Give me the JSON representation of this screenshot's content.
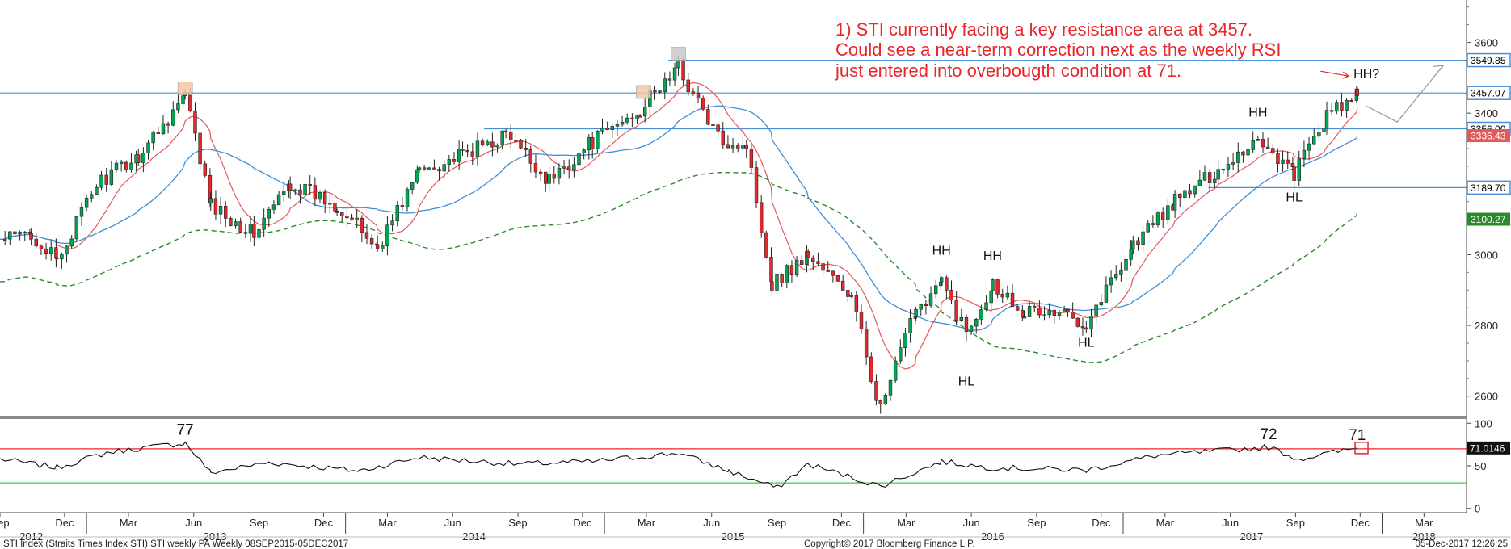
{
  "chart_data": {
    "type": "candlestick",
    "footer_left": "STI Index (Straits Times Index STI) STI weekly PA  Weekly 08SEP2015-05DEC2017",
    "footer_center": "Copyright© 2017 Bloomberg Finance L.P.",
    "footer_right": "05-Dec-2017 12:26:25",
    "annotation_lines": [
      "1) STI currently facing a key resistance area at 3457.",
      "Could see a near-term correction next as the weekly RSI",
      "just entered into overbougth condition at 71."
    ],
    "colors": {
      "up": "#00a651",
      "down": "#e8262b",
      "ma_short": "#e05a5a",
      "ma_mid": "#3f8fd8",
      "ma_long": "#2b8a2b",
      "hline": "#4a90d9",
      "annotation": "#e8262b",
      "rsi_upper": "#e8262b",
      "rsi_lower": "#3ecf3e"
    },
    "price_axis": {
      "ylim": [
        2540,
        3720
      ],
      "ticks": [
        "2600",
        "2800",
        "3000",
        "3200",
        "3400",
        "3600"
      ]
    },
    "rsi_axis": {
      "ylim": [
        -5,
        105
      ],
      "ticks": [
        "0",
        "50",
        "100"
      ],
      "upper_level": 70,
      "lower_level": 30
    },
    "x_range": [
      "2012-09-01",
      "2018-04-30"
    ],
    "x_months": [
      {
        "label": "Sep",
        "date": "2012-09-01"
      },
      {
        "label": "Dec",
        "date": "2012-12-01"
      },
      {
        "label": "Mar",
        "date": "2013-03-01"
      },
      {
        "label": "Jun",
        "date": "2013-06-01"
      },
      {
        "label": "Sep",
        "date": "2013-09-01"
      },
      {
        "label": "Dec",
        "date": "2013-12-01"
      },
      {
        "label": "Mar",
        "date": "2014-03-01"
      },
      {
        "label": "Jun",
        "date": "2014-06-01"
      },
      {
        "label": "Sep",
        "date": "2014-09-01"
      },
      {
        "label": "Dec",
        "date": "2014-12-01"
      },
      {
        "label": "Mar",
        "date": "2015-03-01"
      },
      {
        "label": "Jun",
        "date": "2015-06-01"
      },
      {
        "label": "Sep",
        "date": "2015-09-01"
      },
      {
        "label": "Dec",
        "date": "2015-12-01"
      },
      {
        "label": "Mar",
        "date": "2016-03-01"
      },
      {
        "label": "Jun",
        "date": "2016-06-01"
      },
      {
        "label": "Sep",
        "date": "2016-09-01"
      },
      {
        "label": "Dec",
        "date": "2016-12-01"
      },
      {
        "label": "Mar",
        "date": "2017-03-01"
      },
      {
        "label": "Jun",
        "date": "2017-06-01"
      },
      {
        "label": "Sep",
        "date": "2017-09-01"
      },
      {
        "label": "Dec",
        "date": "2017-12-01"
      },
      {
        "label": "Mar",
        "date": "2018-03-01"
      }
    ],
    "x_years": [
      {
        "label": "2012",
        "date": "2012-10-15"
      },
      {
        "label": "2013",
        "date": "2013-07-01"
      },
      {
        "label": "2014",
        "date": "2014-07-01"
      },
      {
        "label": "2015",
        "date": "2015-07-01"
      },
      {
        "label": "2016",
        "date": "2016-07-01"
      },
      {
        "label": "2017",
        "date": "2017-07-01"
      },
      {
        "label": "2018",
        "date": "2018-03-01"
      }
    ],
    "horizontal_levels": [
      {
        "value": 3549.85,
        "label": "3549.85",
        "start": "2015-04-01"
      },
      {
        "value": 3457.07,
        "label": "3457.07",
        "start": "2012-09-01"
      },
      {
        "value": 3356.0,
        "label": "3356.00",
        "start": "2014-07-15"
      },
      {
        "value": 3189.7,
        "label": "3189.70",
        "start": "2017-05-01"
      }
    ],
    "ma_tags": [
      {
        "value": 3336.43,
        "label": "3336.43",
        "series": "ma_short"
      },
      {
        "value": 3100.27,
        "label": "3100.27",
        "series": "ma_long"
      }
    ],
    "rsi_tag": {
      "value": 71.0146,
      "label": "71.0146"
    },
    "rsi_labels": [
      {
        "text": "77",
        "date": "2013-05-20",
        "value": 77
      },
      {
        "text": "72",
        "date": "2017-07-25",
        "value": 72
      },
      {
        "text": "71",
        "date": "2017-11-27",
        "value": 71
      }
    ],
    "swing_labels": [
      {
        "text": "HH",
        "date": "2016-04-20",
        "value": 3000
      },
      {
        "text": "HL",
        "date": "2016-05-25",
        "value": 2630
      },
      {
        "text": "HH",
        "date": "2016-07-01",
        "value": 2985
      },
      {
        "text": "HL",
        "date": "2016-11-10",
        "value": 2740
      },
      {
        "text": "HH",
        "date": "2017-07-10",
        "value": 3390
      },
      {
        "text": "HL",
        "date": "2017-08-30",
        "value": 3150
      },
      {
        "text": "HH?",
        "date": "2017-12-10",
        "value": 3500
      }
    ],
    "highlight_boxes": [
      {
        "date": "2013-05-20",
        "value": 3470,
        "color": "#f5c6a5"
      },
      {
        "date": "2015-02-25",
        "value": 3460,
        "color": "#f5c6a5"
      },
      {
        "date": "2015-04-15",
        "value": 3568,
        "color": "#c8c8c8"
      }
    ],
    "candles_ohlc_keypoints": [
      {
        "date": "2012-09-01",
        "close": 3040
      },
      {
        "date": "2012-10-15",
        "close": 3060
      },
      {
        "date": "2012-11-20",
        "close": 2980
      },
      {
        "date": "2013-01-15",
        "close": 3200
      },
      {
        "date": "2013-03-15",
        "close": 3280
      },
      {
        "date": "2013-05-20",
        "close": 3450
      },
      {
        "date": "2013-06-25",
        "close": 3140
      },
      {
        "date": "2013-08-25",
        "close": 3060
      },
      {
        "date": "2013-10-15",
        "close": 3200
      },
      {
        "date": "2013-12-20",
        "close": 3140
      },
      {
        "date": "2014-02-15",
        "close": 3020
      },
      {
        "date": "2014-04-15",
        "close": 3240
      },
      {
        "date": "2014-06-15",
        "close": 3280
      },
      {
        "date": "2014-08-15",
        "close": 3340
      },
      {
        "date": "2014-10-15",
        "close": 3210
      },
      {
        "date": "2014-12-15",
        "close": 3320
      },
      {
        "date": "2015-02-20",
        "close": 3410
      },
      {
        "date": "2015-04-15",
        "close": 3530
      },
      {
        "date": "2015-06-10",
        "close": 3330
      },
      {
        "date": "2015-07-20",
        "close": 3310
      },
      {
        "date": "2015-08-25",
        "close": 2920
      },
      {
        "date": "2015-10-15",
        "close": 3000
      },
      {
        "date": "2015-12-15",
        "close": 2880
      },
      {
        "date": "2016-01-25",
        "close": 2560
      },
      {
        "date": "2016-03-15",
        "close": 2850
      },
      {
        "date": "2016-04-20",
        "close": 2920
      },
      {
        "date": "2016-05-25",
        "close": 2780
      },
      {
        "date": "2016-07-01",
        "close": 2920
      },
      {
        "date": "2016-08-15",
        "close": 2840
      },
      {
        "date": "2016-10-15",
        "close": 2830
      },
      {
        "date": "2016-11-10",
        "close": 2810
      },
      {
        "date": "2017-01-15",
        "close": 3030
      },
      {
        "date": "2017-03-15",
        "close": 3150
      },
      {
        "date": "2017-05-15",
        "close": 3240
      },
      {
        "date": "2017-07-10",
        "close": 3330
      },
      {
        "date": "2017-08-30",
        "close": 3230
      },
      {
        "date": "2017-10-15",
        "close": 3390
      },
      {
        "date": "2017-11-27",
        "close": 3450
      }
    ],
    "rsi_keypoints": [
      {
        "date": "2012-09-01",
        "value": 58
      },
      {
        "date": "2012-11-20",
        "value": 48
      },
      {
        "date": "2013-02-01",
        "value": 66
      },
      {
        "date": "2013-05-20",
        "value": 77
      },
      {
        "date": "2013-06-25",
        "value": 42
      },
      {
        "date": "2013-09-15",
        "value": 54
      },
      {
        "date": "2014-01-20",
        "value": 44
      },
      {
        "date": "2014-04-15",
        "value": 60
      },
      {
        "date": "2014-09-01",
        "value": 52
      },
      {
        "date": "2014-12-15",
        "value": 55
      },
      {
        "date": "2015-04-15",
        "value": 65
      },
      {
        "date": "2015-06-25",
        "value": 44
      },
      {
        "date": "2015-09-01",
        "value": 24
      },
      {
        "date": "2015-10-15",
        "value": 52
      },
      {
        "date": "2016-01-25",
        "value": 26
      },
      {
        "date": "2016-04-20",
        "value": 55
      },
      {
        "date": "2016-06-25",
        "value": 48
      },
      {
        "date": "2016-11-10",
        "value": 45
      },
      {
        "date": "2017-02-15",
        "value": 62
      },
      {
        "date": "2017-07-25",
        "value": 72
      },
      {
        "date": "2017-09-05",
        "value": 58
      },
      {
        "date": "2017-11-27",
        "value": 71
      }
    ]
  }
}
